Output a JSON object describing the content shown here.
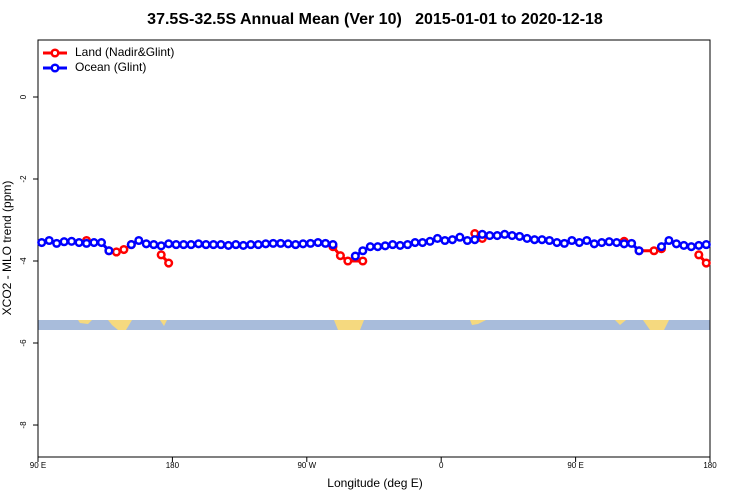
{
  "chart_data": {
    "type": "line",
    "title": "37.5S-32.5S Annual Mean (Ver 10)   2015-01-01 to 2020-12-18",
    "x_label": "Longitude (deg E)",
    "y_label": "XCO2 - MLO trend (ppm)",
    "xlim": [
      90,
      540
    ],
    "xticks": [
      {
        "value": 90,
        "label": "90 E"
      },
      {
        "value": 180,
        "label": "180"
      },
      {
        "value": 270,
        "label": "90 W"
      },
      {
        "value": 360,
        "label": "0"
      },
      {
        "value": 450,
        "label": "90 E"
      },
      {
        "value": 540,
        "label": "180"
      }
    ],
    "ylim": [
      -8.78,
      1.39
    ],
    "yticks": [
      0,
      -2,
      -4,
      -6,
      -8
    ],
    "legend": "top-left",
    "series": [
      {
        "name": "Land (Nadir&Glint)",
        "color": "#ff0000",
        "x": [
          122.5,
          127.5,
          137.5,
          142.5,
          147.5,
          152.5,
          157.5,
          172.5,
          177.5,
          182.5,
          287.5,
          292.5,
          297.5,
          307.5,
          312.5,
          382.5,
          387.5,
          392.5,
          482.5,
          487.5,
          492.5,
          502.5,
          507.5,
          512.5,
          532.5,
          537.5
        ],
        "values": [
          -3.5,
          null,
          -3.75,
          -3.78,
          -3.72,
          -3.6,
          null,
          -3.85,
          -4.05,
          null,
          -3.65,
          -3.87,
          -4.0,
          -4.0,
          null,
          -3.33,
          -3.45,
          null,
          -3.52,
          null,
          -3.75,
          -3.75,
          -3.7,
          null,
          -3.85,
          -4.05
        ]
      },
      {
        "name": "Ocean (Glint)",
        "color": "#0000ff",
        "x": [
          92.5,
          97.5,
          102.5,
          107.5,
          112.5,
          117.5,
          122.5,
          127.5,
          132.5,
          137.5,
          142.5,
          147.5,
          152.5,
          157.5,
          162.5,
          167.5,
          172.5,
          177.5,
          182.5,
          187.5,
          192.5,
          197.5,
          202.5,
          207.5,
          212.5,
          217.5,
          222.5,
          227.5,
          232.5,
          237.5,
          242.5,
          247.5,
          252.5,
          257.5,
          262.5,
          267.5,
          272.5,
          277.5,
          282.5,
          287.5,
          292.5,
          297.5,
          302.5,
          307.5,
          312.5,
          317.5,
          322.5,
          327.5,
          332.5,
          337.5,
          342.5,
          347.5,
          352.5,
          357.5,
          362.5,
          367.5,
          372.5,
          377.5,
          382.5,
          387.5,
          392.5,
          397.5,
          402.5,
          407.5,
          412.5,
          417.5,
          422.5,
          427.5,
          432.5,
          437.5,
          442.5,
          447.5,
          452.5,
          457.5,
          462.5,
          467.5,
          472.5,
          477.5,
          482.5,
          487.5,
          492.5,
          497.5,
          502.5,
          507.5,
          512.5,
          517.5,
          522.5,
          527.5,
          532.5,
          537.5
        ],
        "values": [
          -3.55,
          -3.5,
          -3.57,
          -3.53,
          -3.52,
          -3.55,
          -3.57,
          -3.55,
          -3.55,
          -3.75,
          null,
          null,
          -3.6,
          -3.5,
          -3.58,
          -3.6,
          -3.63,
          -3.58,
          -3.6,
          -3.6,
          -3.6,
          -3.58,
          -3.6,
          -3.6,
          -3.6,
          -3.62,
          -3.6,
          -3.62,
          -3.6,
          -3.6,
          -3.58,
          -3.57,
          -3.57,
          -3.58,
          -3.6,
          -3.58,
          -3.57,
          -3.55,
          -3.57,
          -3.6,
          null,
          null,
          -3.88,
          -3.75,
          -3.65,
          -3.65,
          -3.63,
          -3.6,
          -3.62,
          -3.6,
          -3.55,
          -3.55,
          -3.52,
          -3.45,
          -3.5,
          -3.48,
          -3.42,
          -3.5,
          -3.48,
          -3.35,
          -3.38,
          -3.38,
          -3.35,
          -3.38,
          -3.4,
          -3.45,
          -3.48,
          -3.48,
          -3.5,
          -3.55,
          -3.57,
          -3.5,
          -3.55,
          -3.5,
          -3.58,
          -3.55,
          -3.53,
          -3.55,
          -3.58,
          -3.57,
          -3.75,
          null,
          null,
          -3.65,
          -3.5,
          -3.58,
          -3.62,
          -3.65,
          -3.62,
          -3.6
        ]
      }
    ]
  }
}
